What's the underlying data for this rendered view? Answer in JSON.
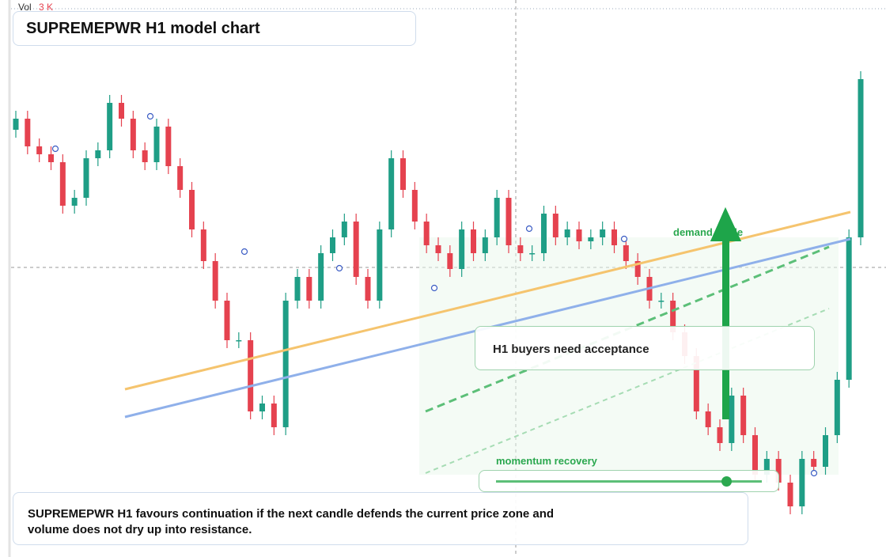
{
  "vol_label": "Vol",
  "vol_value": "3 K",
  "title": "SUPREMEPWR H1 model chart",
  "demand_label": "demand guide",
  "acceptance_note": "H1 buyers need acceptance",
  "momentum_label": "momentum recovery",
  "summary_lines": [
    "SUPREMEPWR H1 favours continuation if the next candle defends the current price zone and",
    "volume does not dry up into resistance."
  ],
  "chart_data": {
    "type": "candlestick",
    "ylim": [
      0,
      704
    ],
    "up_color": "#1f9e86",
    "down_color": "#e5424f",
    "open": [
      540,
      554,
      519,
      509,
      499,
      444,
      454,
      504,
      514,
      574,
      554,
      514,
      499,
      544,
      494,
      464,
      414,
      374,
      324,
      274,
      274,
      184,
      194,
      164,
      324,
      354,
      324,
      384,
      404,
      424,
      354,
      324,
      414,
      504,
      464,
      424,
      394,
      384,
      364,
      414,
      384,
      404,
      454,
      394,
      384,
      384,
      434,
      404,
      414,
      399,
      404,
      414,
      394,
      374,
      354,
      324,
      324,
      284,
      254,
      184,
      164,
      144,
      204,
      154,
      104,
      124,
      94,
      64,
      124,
      114,
      154,
      224,
      404
    ],
    "high": [
      564,
      564,
      529,
      519,
      509,
      464,
      514,
      524,
      584,
      584,
      564,
      524,
      554,
      554,
      504,
      474,
      424,
      384,
      334,
      284,
      284,
      204,
      204,
      334,
      364,
      364,
      394,
      414,
      434,
      434,
      364,
      424,
      514,
      514,
      474,
      434,
      404,
      394,
      424,
      424,
      414,
      464,
      464,
      404,
      394,
      444,
      444,
      424,
      424,
      414,
      424,
      424,
      404,
      384,
      364,
      334,
      334,
      294,
      264,
      194,
      174,
      214,
      214,
      164,
      134,
      134,
      104,
      134,
      134,
      164,
      234,
      414,
      614
    ],
    "low": [
      530,
      509,
      499,
      489,
      434,
      434,
      444,
      494,
      504,
      544,
      504,
      489,
      489,
      484,
      454,
      404,
      364,
      314,
      264,
      264,
      174,
      174,
      154,
      154,
      314,
      314,
      314,
      374,
      394,
      344,
      314,
      314,
      404,
      454,
      414,
      384,
      374,
      354,
      354,
      374,
      374,
      394,
      384,
      374,
      374,
      374,
      394,
      394,
      389,
      389,
      394,
      384,
      364,
      344,
      314,
      314,
      274,
      244,
      174,
      154,
      134,
      134,
      144,
      94,
      94,
      84,
      54,
      54,
      104,
      104,
      144,
      214,
      394
    ],
    "close": [
      554,
      519,
      509,
      499,
      444,
      454,
      504,
      514,
      574,
      554,
      514,
      499,
      544,
      494,
      464,
      414,
      374,
      324,
      274,
      274,
      184,
      194,
      164,
      324,
      354,
      324,
      384,
      404,
      424,
      354,
      324,
      414,
      504,
      464,
      424,
      394,
      384,
      364,
      414,
      384,
      404,
      454,
      394,
      384,
      384,
      434,
      404,
      414,
      399,
      404,
      414,
      394,
      374,
      354,
      324,
      324,
      284,
      254,
      184,
      164,
      144,
      204,
      154,
      104,
      124,
      94,
      64,
      124,
      114,
      154,
      224,
      404,
      604
    ]
  }
}
